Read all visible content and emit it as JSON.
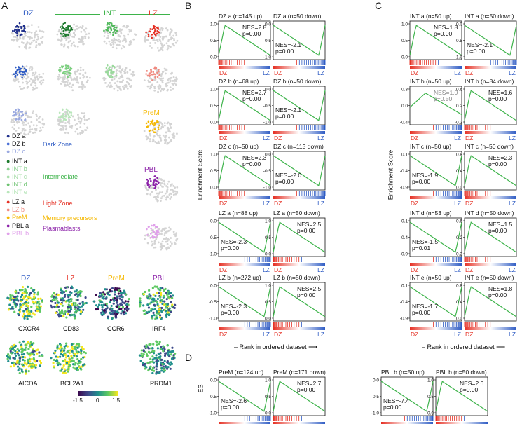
{
  "panel_labels": {
    "a": "A",
    "b": "B",
    "c": "C",
    "d": "D"
  },
  "umap_headers": {
    "dz": "DZ",
    "int": "INT",
    "lz": "LZ",
    "prem": "PreM",
    "pbl": "PBL"
  },
  "legend": {
    "dz_items": [
      "DZ a",
      "DZ b",
      "DZ c"
    ],
    "int_items": [
      "INT a",
      "INT b",
      "INT c",
      "INT d",
      "INT e"
    ],
    "lz_items": [
      "LZ a",
      "LZ b"
    ],
    "prem_items": [
      "PreM"
    ],
    "pbl_items": [
      "PBL a",
      "PBL b"
    ],
    "groups": {
      "dz": "Dark Zone",
      "int": "Intermediate",
      "lz": "Light Zone",
      "prem": "Memory precursors",
      "pbl": "Plasmablasts"
    }
  },
  "gene_panel": {
    "headers": {
      "dz": "DZ",
      "lz": "LZ",
      "prem": "PreM",
      "pbl": "PBL"
    },
    "genes_row1": [
      "CXCR4",
      "CD83",
      "CCR6",
      "IRF4"
    ],
    "genes_row2": [
      "AICDA",
      "BCL2A1",
      "PRDM1"
    ],
    "colorbar_ticks": [
      "-1.5",
      "0",
      "1.5"
    ]
  },
  "colors": {
    "dz": "#2f5cc4",
    "int": "#3db34a",
    "lz": "#e53024",
    "prem": "#f5b800",
    "pbl": "#8a1fa8",
    "curve": "#3db34a"
  },
  "axis_labels": {
    "enrichment_score": "Enrichment Score",
    "rank": "Rank in ordered dataset",
    "es": "ES"
  },
  "chart_data": [
    {
      "type": "line",
      "panel": "B",
      "title": "DZ a (n=145 up)",
      "nes": "NES=2.8",
      "p": "p=0.00",
      "y_ticks": [
        "1.0",
        "0.5",
        "0.0"
      ],
      "left": "DZ",
      "right": "LZ",
      "shape": "up_early"
    },
    {
      "type": "line",
      "panel": "B",
      "title": "DZ a (n=50 down)",
      "nes": "NES=-2.1",
      "p": "p=0.00",
      "y_ticks": [
        "0.0",
        "-0.5",
        "-1.0"
      ],
      "left": "DZ",
      "right": "LZ",
      "shape": "down_late"
    },
    {
      "type": "line",
      "panel": "B",
      "title": "DZ b (n=68 up)",
      "nes": "NES=2.7",
      "p": "p=0.00",
      "y_ticks": [
        "1.0",
        "0.5",
        "0.0"
      ],
      "left": "DZ",
      "right": "LZ",
      "shape": "up_early"
    },
    {
      "type": "line",
      "panel": "B",
      "title": "DZ b (n=50 down)",
      "nes": "NES=-2.1",
      "p": "p=0.00",
      "y_ticks": [
        "0.0",
        "-0.5",
        "-1.0"
      ],
      "left": "DZ",
      "right": "LZ",
      "shape": "down_late"
    },
    {
      "type": "line",
      "panel": "B",
      "title": "DZ c (n=50 up)",
      "nes": "NES=2.3",
      "p": "p=0.00",
      "y_ticks": [
        "1.0",
        "0.5",
        "0.0"
      ],
      "left": "DZ",
      "right": "LZ",
      "shape": "up_early"
    },
    {
      "type": "line",
      "panel": "B",
      "title": "DZ c (n=113 down)",
      "nes": "NES=-2.0",
      "p": "p=0.00",
      "y_ticks": [
        "0.0",
        "-0.5",
        "-1.0"
      ],
      "left": "DZ",
      "right": "LZ",
      "shape": "down_late"
    },
    {
      "type": "line",
      "panel": "B",
      "title": "LZ a (n=88 up)",
      "nes": "NES=-2.3",
      "p": "p=0.00",
      "y_ticks": [
        "0.0",
        "-0.5",
        "-1.0"
      ],
      "left": "DZ",
      "right": "LZ",
      "shape": "down_late"
    },
    {
      "type": "line",
      "panel": "B",
      "title": "LZ a (n=50 down)",
      "nes": "NES=2.5",
      "p": "p=0.00",
      "y_ticks": [
        "1.0",
        "0.5",
        "0.0"
      ],
      "left": "DZ",
      "right": "LZ",
      "shape": "up_early"
    },
    {
      "type": "line",
      "panel": "B",
      "title": "LZ b (n=272 up)",
      "nes": "NES=-2.3",
      "p": "p=0.00",
      "y_ticks": [
        "0.0",
        "-0.5",
        "-1.0"
      ],
      "left": "DZ",
      "right": "LZ",
      "shape": "down_late"
    },
    {
      "type": "line",
      "panel": "B",
      "title": "LZ b (n=50 down)",
      "nes": "NES=2.5",
      "p": "p=0.00",
      "y_ticks": [
        "1.0",
        "0.5",
        "0.0"
      ],
      "left": "DZ",
      "right": "LZ",
      "shape": "up_early"
    },
    {
      "type": "line",
      "panel": "C",
      "title": "INT a (n=50 up)",
      "nes": "NES=1.8",
      "p": "p=0.00",
      "y_ticks": [
        "1.0",
        "0.5",
        "0.0"
      ],
      "left": "DZ",
      "right": "LZ",
      "shape": "up_early"
    },
    {
      "type": "line",
      "panel": "C",
      "title": "INT a (n=50 down)",
      "nes": "NES=-2.1",
      "p": "p=0.00",
      "y_ticks": [
        "0.0",
        "-0.5",
        "-1.0"
      ],
      "left": "DZ",
      "right": "LZ",
      "shape": "down_late"
    },
    {
      "type": "line",
      "panel": "C",
      "title": "INT b (n=50 up)",
      "nes": "NES=1.0",
      "p": "p=0.50",
      "grey": true,
      "y_ticks": [
        "0.3",
        "0.0",
        "-0.4"
      ],
      "left": "DZ",
      "right": "LZ",
      "shape": "mid"
    },
    {
      "type": "line",
      "panel": "C",
      "title": "INT b (n=84 down)",
      "nes": "NES=1.6",
      "p": "p=0.00",
      "y_ticks": [
        "0.6",
        "0.2",
        "-0.2"
      ],
      "left": "DZ",
      "right": "LZ",
      "shape": "up_early"
    },
    {
      "type": "line",
      "panel": "C",
      "title": "INT c (n=50 up)",
      "nes": "NES=-1.9",
      "p": "p=0.00",
      "y_ticks": [
        "0.1",
        "-0.4",
        "-0.9"
      ],
      "left": "DZ",
      "right": "LZ",
      "shape": "down_late"
    },
    {
      "type": "line",
      "panel": "C",
      "title": "INT c (n=50 down)",
      "nes": "NES=2.3",
      "p": "p=0.00",
      "y_ticks": [
        "0.8",
        "0.4",
        "0.0"
      ],
      "left": "DZ",
      "right": "LZ",
      "shape": "up_early"
    },
    {
      "type": "line",
      "panel": "C",
      "title": "INT d (n=53 up)",
      "nes": "NES=-1.5",
      "p": "p=0.01",
      "y_ticks": [
        "0.1",
        "-0.4",
        "-0.9"
      ],
      "left": "DZ",
      "right": "LZ",
      "shape": "down_late"
    },
    {
      "type": "line",
      "panel": "C",
      "title": "INT d (n=50 down)",
      "nes": "NES=1.5",
      "p": "p=0.00",
      "y_ticks": [
        "0.6",
        "0.2",
        "-0.2"
      ],
      "left": "DZ",
      "right": "LZ",
      "shape": "up_early"
    },
    {
      "type": "line",
      "panel": "C",
      "title": "INT e (n=50 up)",
      "nes": "NES=-1.7",
      "p": "p=0.00",
      "y_ticks": [
        "0.1",
        "-0.4",
        "-0.9"
      ],
      "left": "DZ",
      "right": "LZ",
      "shape": "down_late"
    },
    {
      "type": "line",
      "panel": "C",
      "title": "INT e (n=50 down)",
      "nes": "NES=1.8",
      "p": "p=0.00",
      "y_ticks": [
        "0.8",
        "0.4",
        "0.0"
      ],
      "left": "DZ",
      "right": "LZ",
      "shape": "up_early"
    },
    {
      "type": "line",
      "panel": "D",
      "title": "PreM (n=124 up)",
      "nes": "NES=-2.6",
      "p": "p=0.00",
      "y_ticks": [
        "0.0",
        "-0.5",
        "-1.0"
      ],
      "left": "GC",
      "right": "M",
      "shape": "down_late"
    },
    {
      "type": "line",
      "panel": "D",
      "title": "PreM (n=171 down)",
      "nes": "NES=2.7",
      "p": "p=0.00",
      "y_ticks": [
        "1.0",
        "0.5",
        "0.0"
      ],
      "left": "GC",
      "right": "M",
      "shape": "up_early"
    },
    {
      "type": "line",
      "panel": "D",
      "title": "PBL b (n=50 up)",
      "nes": "NES=-7.4",
      "p": "p=0.00",
      "y_ticks": [
        "0.0",
        "-0.5",
        "-1.0"
      ],
      "left": "GC",
      "right": "PC",
      "shape": "down_late"
    },
    {
      "type": "line",
      "panel": "D",
      "title": "PBL b (n=50 down)",
      "nes": "NES=2.6",
      "p": "p=0.00",
      "y_ticks": [
        "1.0",
        "0.5",
        "0.0"
      ],
      "left": "GC",
      "right": "PC",
      "shape": "up_early"
    }
  ]
}
